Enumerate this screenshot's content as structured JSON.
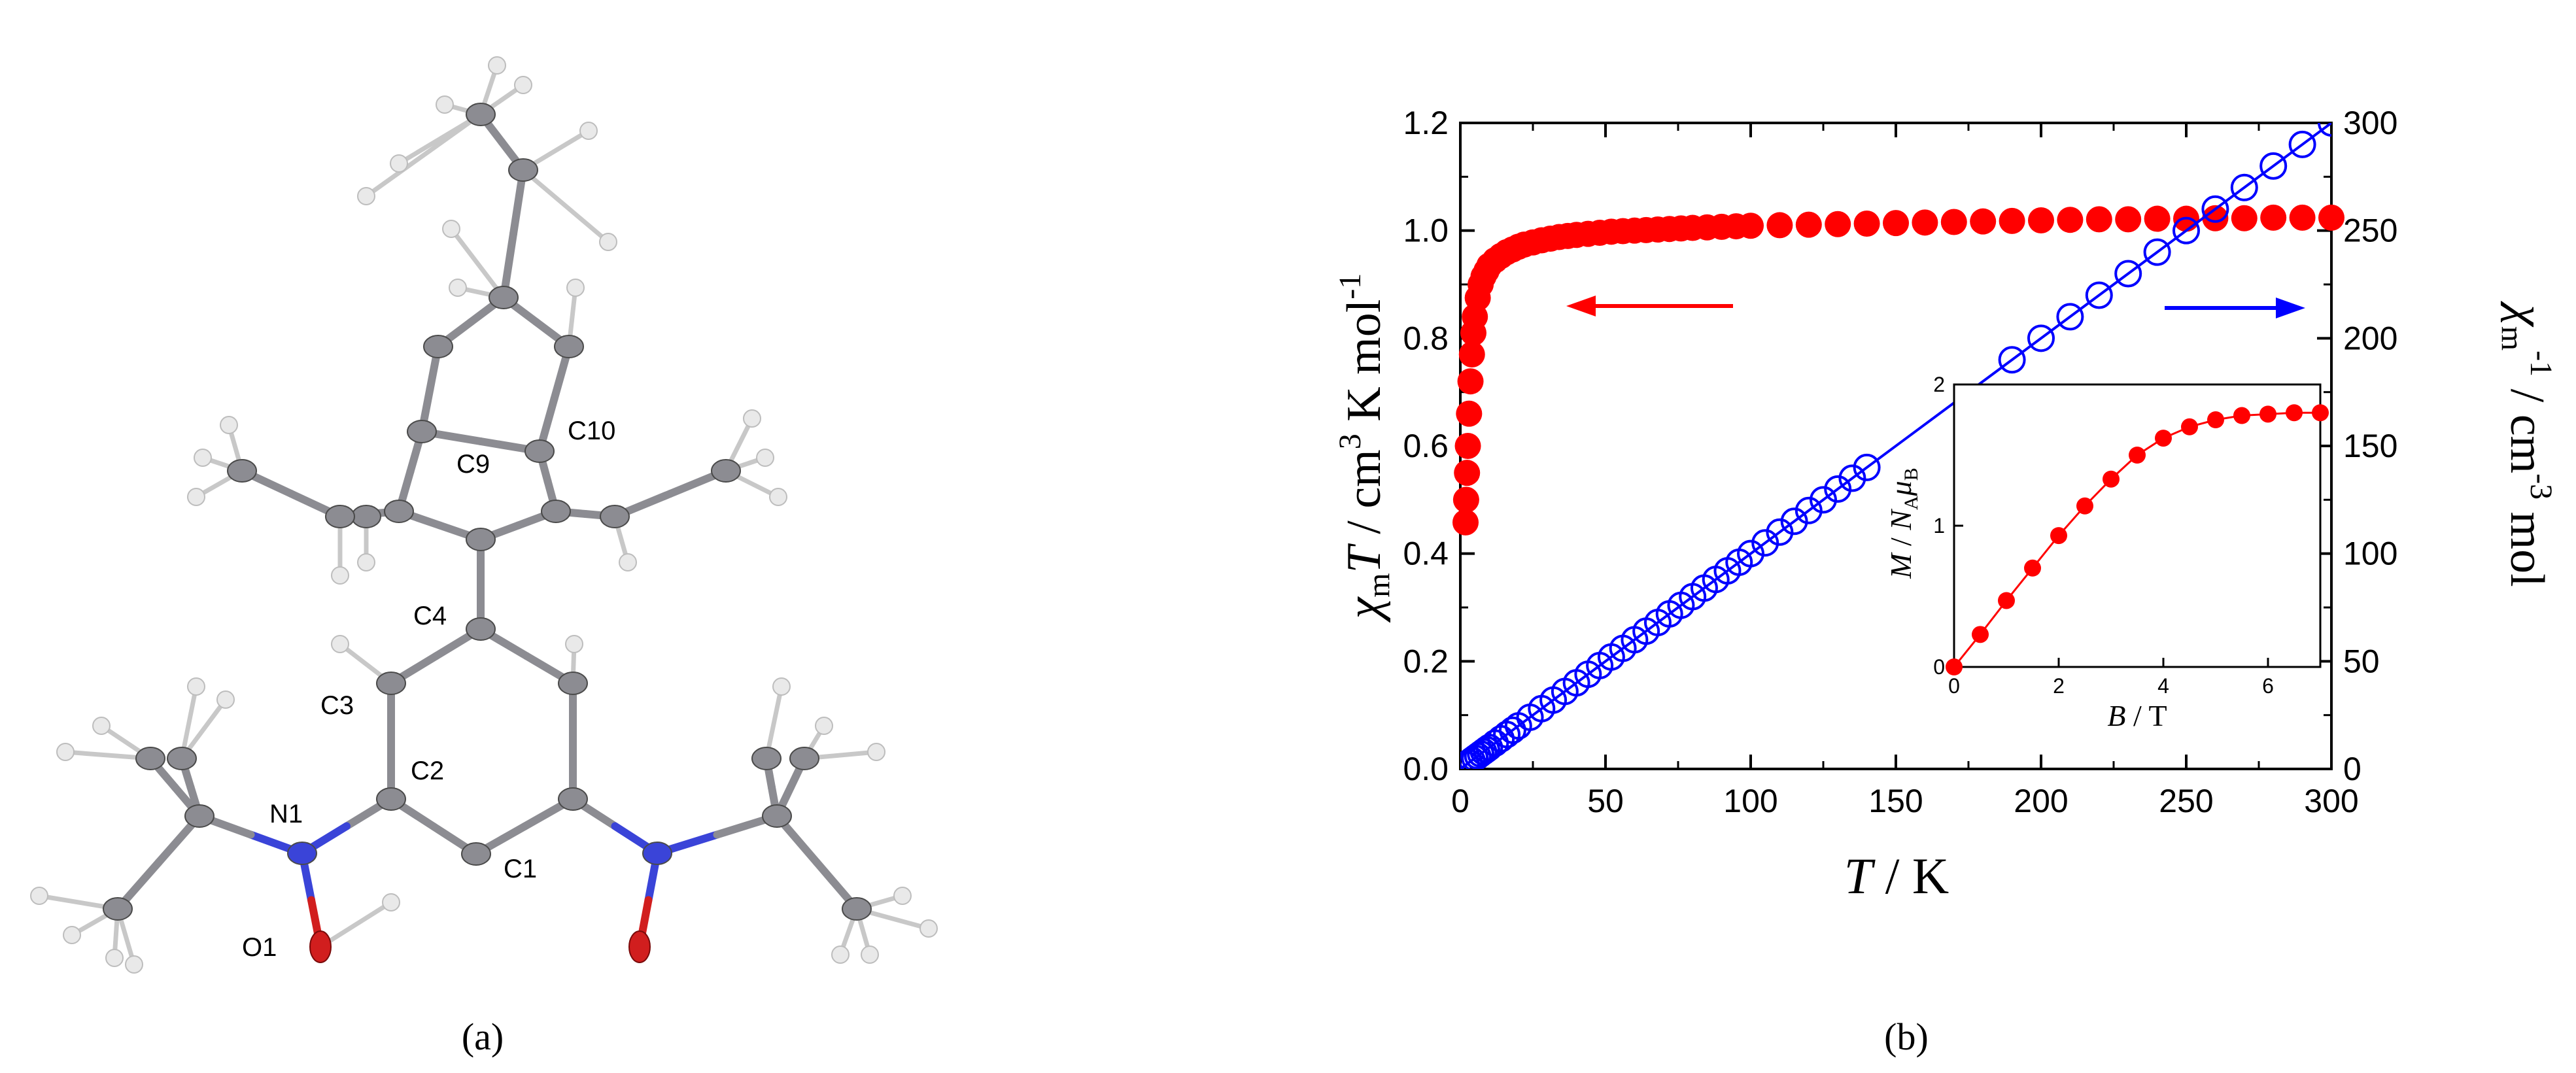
{
  "panels": {
    "a": {
      "label": "(a)"
    },
    "b": {
      "label": "(b)"
    }
  },
  "molecule": {
    "atom_labels": [
      "C10",
      "C9",
      "C4",
      "C3",
      "C2",
      "N1",
      "C1",
      "O1"
    ],
    "element_colors": {
      "carbon": "#8c8c92",
      "hydrogen": "#e9e9e9",
      "nitrogen": "#3a44d8",
      "oxygen": "#d11e1e"
    }
  },
  "chart_data": [
    {
      "type": "scatter",
      "xlabel": "T / K",
      "ylabel_left": "χmT / cm3 K mol-1",
      "ylabel_right": "χm-1 / cm-3 mol",
      "xlim": [
        0,
        300
      ],
      "ylim_left": [
        0,
        1.2
      ],
      "ylim_right": [
        0,
        300
      ],
      "x_ticks": [
        "0",
        "50",
        "100",
        "150",
        "200",
        "250",
        "300"
      ],
      "y_left_ticks": [
        "0.0",
        "0.2",
        "0.4",
        "0.6",
        "0.8",
        "1.0",
        "1.2"
      ],
      "y_right_ticks": [
        "0",
        "50",
        "100",
        "150",
        "200",
        "250",
        "300"
      ],
      "series": [
        {
          "axis": "left",
          "marker": "filled-circle",
          "color": "#ff0000",
          "x": [
            1.8,
            2,
            2.3,
            2.6,
            3,
            3.5,
            4,
            4.5,
            5,
            6,
            7,
            8,
            9,
            10,
            12,
            14,
            16,
            18,
            20,
            22,
            25,
            28,
            31,
            34,
            37,
            40,
            44,
            48,
            52,
            56,
            60,
            64,
            68,
            72,
            76,
            80,
            85,
            90,
            95,
            100,
            110,
            120,
            130,
            140,
            150,
            160,
            170,
            180,
            190,
            200,
            210,
            220,
            230,
            240,
            250,
            260,
            270,
            280,
            290,
            300
          ],
          "y": [
            0.458,
            0.5,
            0.55,
            0.6,
            0.66,
            0.72,
            0.77,
            0.81,
            0.84,
            0.875,
            0.9,
            0.915,
            0.925,
            0.935,
            0.945,
            0.953,
            0.96,
            0.965,
            0.97,
            0.974,
            0.978,
            0.982,
            0.985,
            0.988,
            0.99,
            0.992,
            0.994,
            0.996,
            0.998,
            0.999,
            1.0,
            1.001,
            1.002,
            1.003,
            1.004,
            1.005,
            1.006,
            1.007,
            1.008,
            1.009,
            1.01,
            1.011,
            1.012,
            1.013,
            1.014,
            1.015,
            1.016,
            1.017,
            1.018,
            1.019,
            1.02,
            1.021,
            1.021,
            1.022,
            1.022,
            1.023,
            1.023,
            1.024,
            1.024,
            1.024
          ]
        },
        {
          "axis": "right",
          "marker": "open-circle",
          "color": "#0000ff",
          "x": [
            2,
            3,
            4,
            5,
            6,
            7,
            8,
            9,
            10,
            12,
            14,
            16,
            18,
            20,
            24,
            28,
            32,
            36,
            40,
            44,
            48,
            52,
            56,
            60,
            64,
            68,
            72,
            76,
            80,
            84,
            88,
            92,
            96,
            100,
            105,
            110,
            115,
            120,
            125,
            130,
            135,
            140,
            190,
            200,
            210,
            220,
            230,
            240,
            250,
            260,
            270,
            280,
            290,
            300
          ],
          "y": [
            2,
            3,
            4,
            5,
            6,
            7,
            8,
            9,
            10,
            12,
            14,
            16,
            18,
            20,
            24,
            28,
            32,
            36,
            40,
            44,
            48,
            52,
            56,
            60,
            64,
            68,
            72,
            76,
            80,
            84,
            88,
            92,
            96,
            100,
            105,
            110,
            115,
            120,
            125,
            130,
            135,
            140,
            190,
            200,
            210,
            220,
            230,
            240,
            250,
            260,
            270,
            280,
            290,
            300
          ]
        }
      ],
      "annotations": [
        {
          "kind": "arrow",
          "direction": "left",
          "color": "#ff0000",
          "points_to": "left axis"
        },
        {
          "kind": "arrow",
          "direction": "right",
          "color": "#0000ff",
          "points_to": "right axis"
        }
      ]
    },
    {
      "type": "line",
      "role": "inset",
      "xlabel": "B / T",
      "ylabel": "M / NAμB",
      "xlim": [
        0,
        7
      ],
      "ylim": [
        0,
        2
      ],
      "x_ticks": [
        "0",
        "2",
        "4",
        "6"
      ],
      "y_ticks": [
        "0",
        "1",
        "2"
      ],
      "series": [
        {
          "marker": "filled-circle",
          "color": "#ff0000",
          "x": [
            0,
            0.5,
            1,
            1.5,
            2,
            2.5,
            3,
            3.5,
            4,
            4.5,
            5,
            5.5,
            6,
            6.5,
            7
          ],
          "y": [
            0,
            0.23,
            0.47,
            0.7,
            0.93,
            1.14,
            1.33,
            1.5,
            1.62,
            1.7,
            1.75,
            1.78,
            1.79,
            1.8,
            1.8
          ]
        }
      ]
    }
  ]
}
